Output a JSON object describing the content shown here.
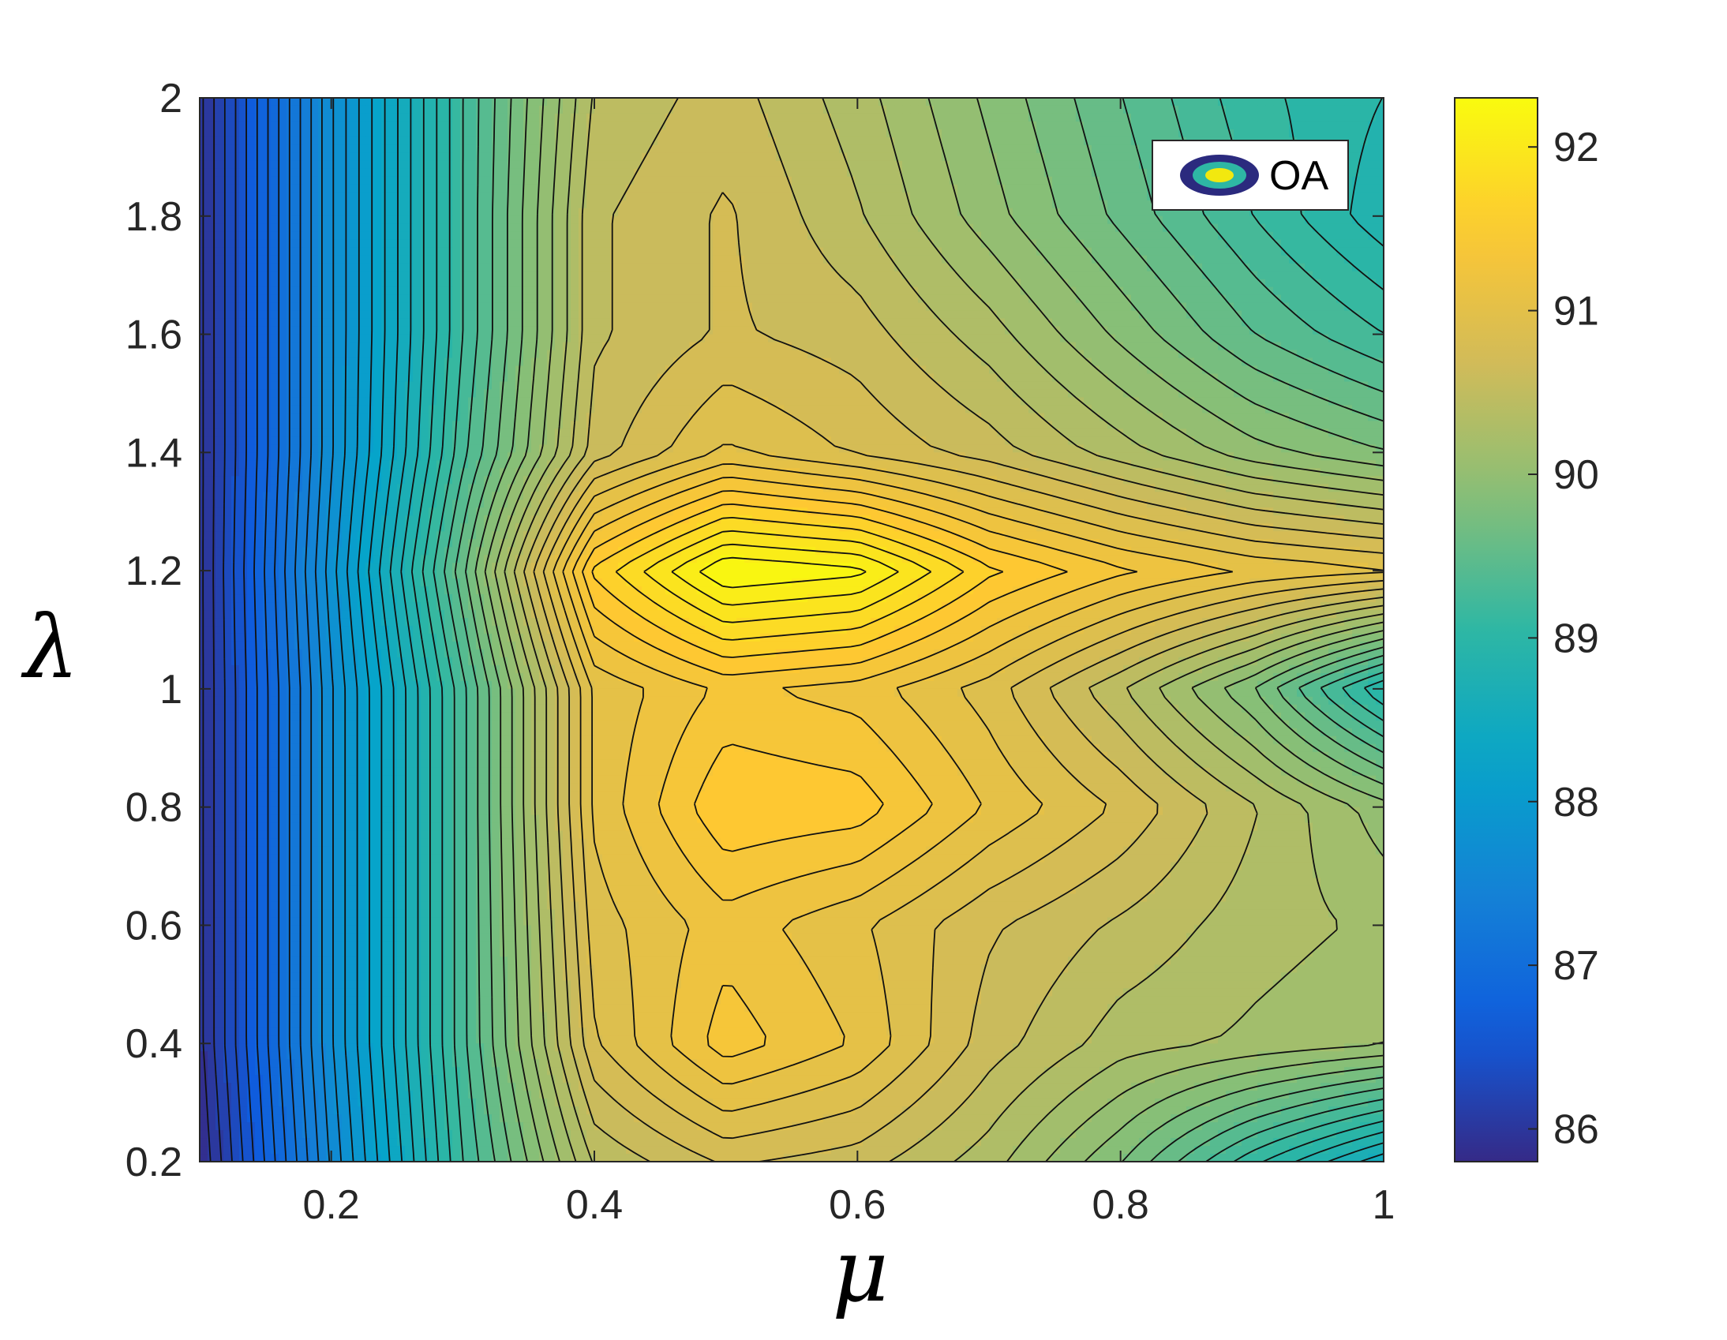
{
  "chart_data": {
    "type": "contour",
    "xlabel": "μ",
    "ylabel": "λ",
    "xlim": [
      0.1,
      1.0
    ],
    "ylim": [
      0.2,
      2.0
    ],
    "x_ticks": [
      "0.2",
      "0.4",
      "0.6",
      "0.8",
      "1"
    ],
    "y_ticks": [
      "0.2",
      "0.4",
      "0.6",
      "0.8",
      "1",
      "1.2",
      "1.4",
      "1.6",
      "1.8",
      "2"
    ],
    "colorbar": {
      "range": [
        85.8,
        92.3
      ],
      "ticks": [
        "86",
        "87",
        "88",
        "89",
        "90",
        "91",
        "92"
      ]
    },
    "legend": {
      "label": "OA",
      "position": "top-right"
    },
    "x": [
      0.1,
      0.2,
      0.3,
      0.4,
      0.5,
      0.6,
      0.7,
      0.8,
      0.9,
      1.0
    ],
    "y": [
      0.2,
      0.4,
      0.6,
      0.8,
      1.0,
      1.2,
      1.4,
      1.6,
      1.8,
      2.0
    ],
    "z": [
      [
        85.8,
        87.6,
        89.2,
        90.4,
        90.7,
        90.6,
        90.3,
        89.8,
        89.1,
        88.5
      ],
      [
        85.9,
        87.7,
        89.3,
        90.8,
        91.35,
        91.1,
        90.6,
        90.3,
        90.2,
        90.1
      ],
      [
        85.9,
        87.7,
        89.3,
        90.9,
        91.2,
        91.0,
        90.7,
        90.5,
        90.3,
        90.2
      ],
      [
        85.9,
        87.7,
        89.3,
        91.0,
        91.55,
        91.5,
        91.1,
        90.8,
        90.4,
        90.0
      ],
      [
        85.9,
        87.7,
        89.3,
        91.0,
        91.3,
        91.2,
        90.9,
        90.4,
        89.8,
        88.9
      ],
      [
        85.9,
        87.8,
        89.6,
        91.6,
        92.3,
        92.2,
        91.6,
        91.3,
        91.1,
        91.0
      ],
      [
        85.9,
        87.7,
        89.3,
        90.6,
        91.0,
        90.8,
        90.6,
        90.3,
        90.0,
        89.8
      ],
      [
        85.9,
        87.7,
        89.2,
        90.5,
        90.7,
        90.6,
        90.3,
        89.9,
        89.5,
        89.2
      ],
      [
        85.9,
        87.7,
        89.2,
        90.5,
        90.7,
        90.4,
        90.0,
        89.6,
        89.2,
        88.8
      ],
      [
        85.9,
        87.7,
        89.2,
        90.4,
        90.6,
        90.3,
        89.9,
        89.5,
        89.1,
        88.9
      ]
    ],
    "colors": [
      "#352a87",
      "#0f5cdd",
      "#1481d6",
      "#06a4ca",
      "#2eb7a4",
      "#87bf77",
      "#d1bb59",
      "#fec832",
      "#f9fb0e"
    ]
  }
}
